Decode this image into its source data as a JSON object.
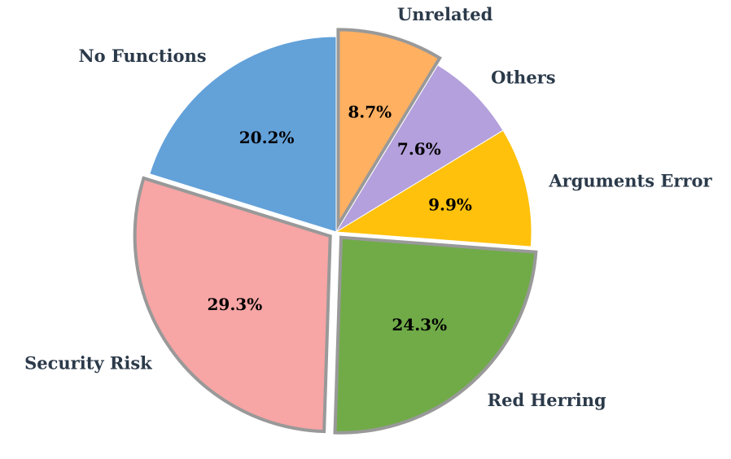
{
  "chart_data": {
    "type": "pie",
    "title": "",
    "slices": [
      {
        "label": "Unrelated",
        "value": 8.7,
        "display": "8.7%",
        "color": "#ffb061",
        "exploded": true
      },
      {
        "label": "Others",
        "value": 7.6,
        "display": "7.6%",
        "color": "#b4a0dc",
        "exploded": false
      },
      {
        "label": "Arguments Error",
        "value": 9.9,
        "display": "9.9%",
        "color": "#ffc10c",
        "exploded": false
      },
      {
        "label": "Red Herring",
        "value": 24.3,
        "display": "24.3%",
        "color": "#70ab48",
        "exploded": true
      },
      {
        "label": "Security Risk",
        "value": 29.3,
        "display": "29.3%",
        "color": "#f7a5a5",
        "exploded": true
      },
      {
        "label": "No Functions",
        "value": 20.2,
        "display": "20.2%",
        "color": "#63a1d9",
        "exploded": false
      }
    ],
    "start_angle_deg": 90,
    "direction": "clockwise",
    "exploded_edge_color": "#999999",
    "legend": "none"
  }
}
